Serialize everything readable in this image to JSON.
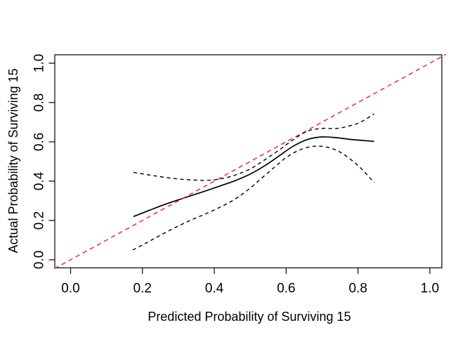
{
  "chart_data": {
    "type": "line",
    "title": "",
    "xlabel": "Predicted Probability of Surviving 15",
    "ylabel": "Actual Probability of Surviving 15",
    "xlim": [
      -0.045,
      1.045
    ],
    "ylim": [
      -0.045,
      1.045
    ],
    "x_tick_labels": [
      "0.0",
      "0.2",
      "0.4",
      "0.6",
      "0.8",
      "1.0"
    ],
    "y_tick_labels": [
      "0.0",
      "0.2",
      "0.4",
      "0.6",
      "0.8",
      "1.0"
    ],
    "grid": false,
    "legend": "none",
    "colors": {
      "ideal_line": "#f02020",
      "curves": "#000000",
      "frame": "#000000"
    },
    "series": [
      {
        "name": "ideal-line",
        "line_style": "dashed",
        "color": "#f02020",
        "x": [
          -0.045,
          1.045
        ],
        "y": [
          -0.045,
          1.045
        ]
      },
      {
        "name": "calibration-curve",
        "line_style": "solid",
        "color": "#000000",
        "x": [
          0.175,
          0.22,
          0.26,
          0.3,
          0.34,
          0.38,
          0.42,
          0.46,
          0.5,
          0.54,
          0.58,
          0.62,
          0.66,
          0.7,
          0.74,
          0.78,
          0.845
        ],
        "y": [
          0.22,
          0.252,
          0.28,
          0.305,
          0.329,
          0.353,
          0.378,
          0.404,
          0.436,
          0.478,
          0.528,
          0.578,
          0.612,
          0.625,
          0.621,
          0.612,
          0.602
        ]
      },
      {
        "name": "upper-confidence-limit",
        "line_style": "dashed",
        "color": "#000000",
        "x": [
          0.175,
          0.22,
          0.26,
          0.3,
          0.34,
          0.38,
          0.42,
          0.46,
          0.5,
          0.54,
          0.58,
          0.62,
          0.66,
          0.7,
          0.74,
          0.78,
          0.81,
          0.845
        ],
        "y": [
          0.445,
          0.431,
          0.42,
          0.411,
          0.406,
          0.404,
          0.412,
          0.432,
          0.462,
          0.508,
          0.558,
          0.611,
          0.655,
          0.668,
          0.668,
          0.683,
          0.703,
          0.742
        ]
      },
      {
        "name": "lower-confidence-limit",
        "line_style": "dashed",
        "color": "#000000",
        "x": [
          0.173,
          0.21,
          0.25,
          0.29,
          0.33,
          0.37,
          0.41,
          0.45,
          0.49,
          0.53,
          0.57,
          0.6,
          0.63,
          0.66,
          0.69,
          0.72,
          0.75,
          0.78,
          0.81,
          0.845
        ],
        "y": [
          0.05,
          0.085,
          0.125,
          0.163,
          0.198,
          0.229,
          0.262,
          0.3,
          0.35,
          0.412,
          0.475,
          0.52,
          0.552,
          0.572,
          0.578,
          0.57,
          0.548,
          0.51,
          0.462,
          0.392
        ]
      }
    ]
  }
}
